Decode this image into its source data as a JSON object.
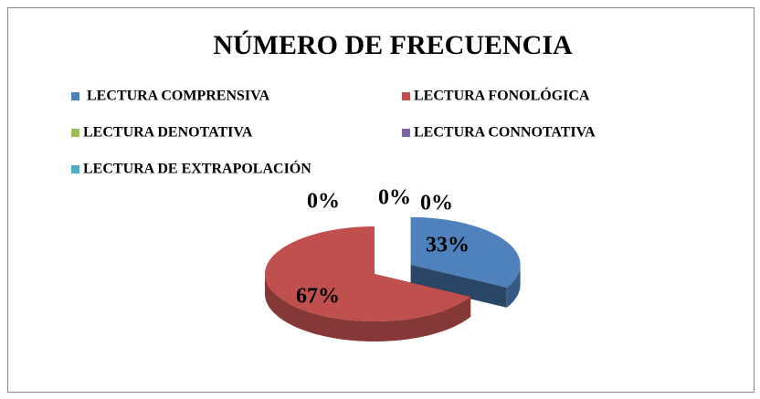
{
  "chart_data": {
    "type": "pie",
    "title": "NÚMERO DE FRECUENCIA",
    "categories": [
      "LECTURA COMPRENSIVA",
      "LECTURA FONOLÓGICA",
      "LECTURA DENOTATIVA",
      "LECTURA CONNOTATIVA",
      "LECTURA DE EXTRAPOLACIÓN"
    ],
    "values": [
      33,
      67,
      0,
      0,
      0
    ],
    "value_labels": [
      "33%",
      "67%",
      "0%",
      "0%",
      "0%"
    ],
    "colors": [
      "#4f81bd",
      "#c0504d",
      "#9bbb59",
      "#8064a2",
      "#4bacc6"
    ],
    "legend": "top",
    "exploded": [
      0
    ]
  }
}
